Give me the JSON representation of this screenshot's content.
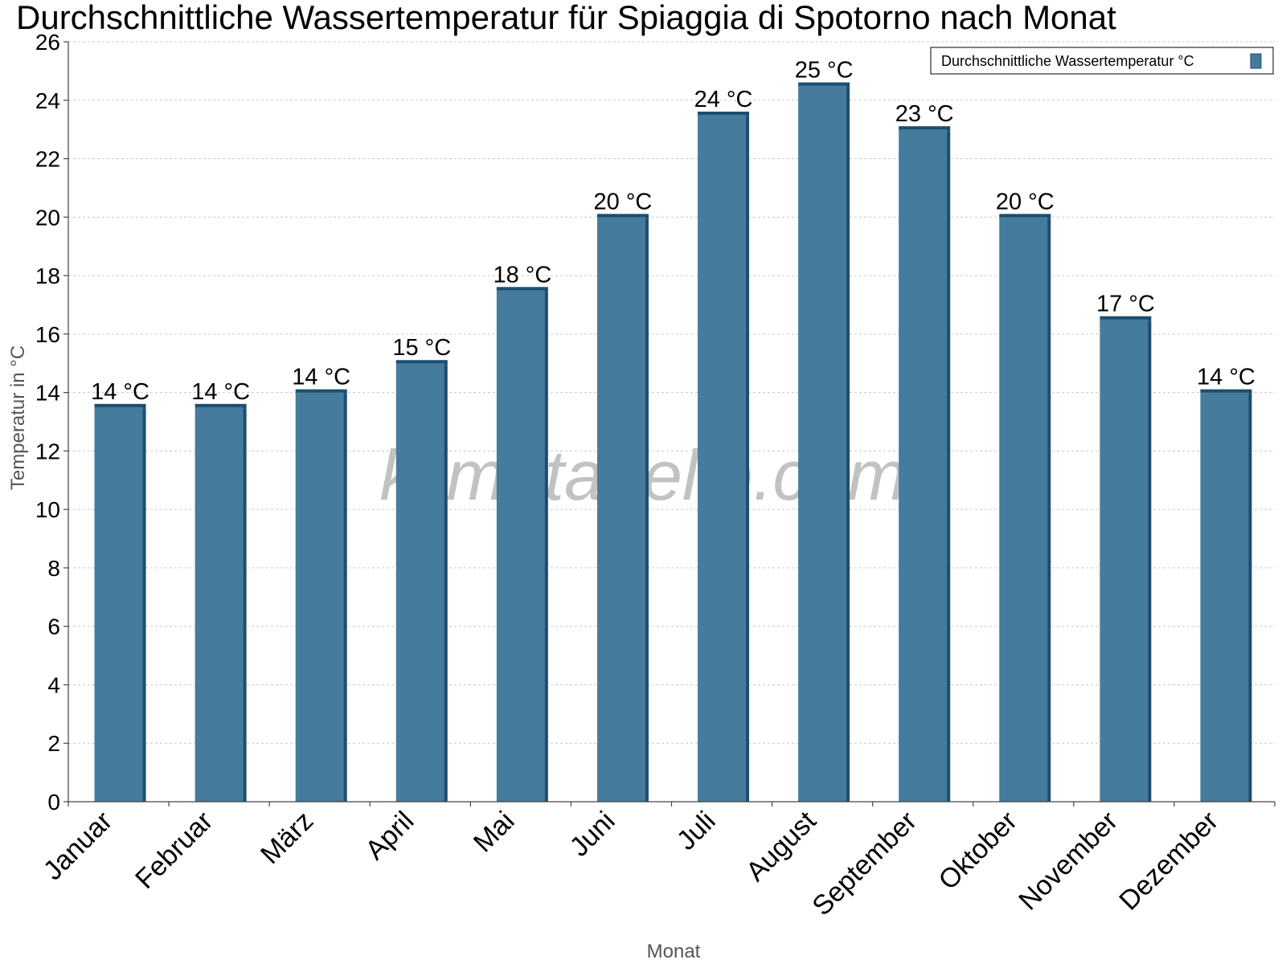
{
  "chart_data": {
    "type": "bar",
    "title": "Durchschnittliche Wassertemperatur für Spiaggia di Spotorno nach Monat",
    "xlabel": "Monat",
    "ylabel": "Temperatur in °C",
    "categories": [
      "Januar",
      "Februar",
      "März",
      "April",
      "Mai",
      "Juni",
      "Juli",
      "August",
      "September",
      "Oktober",
      "November",
      "Dezember"
    ],
    "series": [
      {
        "name": "Durchschnittliche Wassertemperatur °C",
        "values": [
          13.5,
          13.5,
          14.0,
          15.0,
          17.5,
          20.0,
          23.5,
          24.5,
          23.0,
          20.0,
          16.5,
          14.0
        ],
        "labels": [
          "14 °C",
          "14 °C",
          "14 °C",
          "15 °C",
          "18 °C",
          "20 °C",
          "24 °C",
          "25 °C",
          "23 °C",
          "20 °C",
          "17 °C",
          "14 °C"
        ],
        "color": "#457b9d"
      }
    ],
    "ylim": [
      0,
      26
    ],
    "yticks": [
      0,
      2,
      4,
      6,
      8,
      10,
      12,
      14,
      16,
      18,
      20,
      22,
      24,
      26
    ],
    "grid": true,
    "legend_position": "top-right"
  },
  "watermark": "klimatabelle.com",
  "colors": {
    "bar": "#457b9d",
    "bar_side": "#1d4e6e",
    "bar_top": "#1d4e6e"
  }
}
